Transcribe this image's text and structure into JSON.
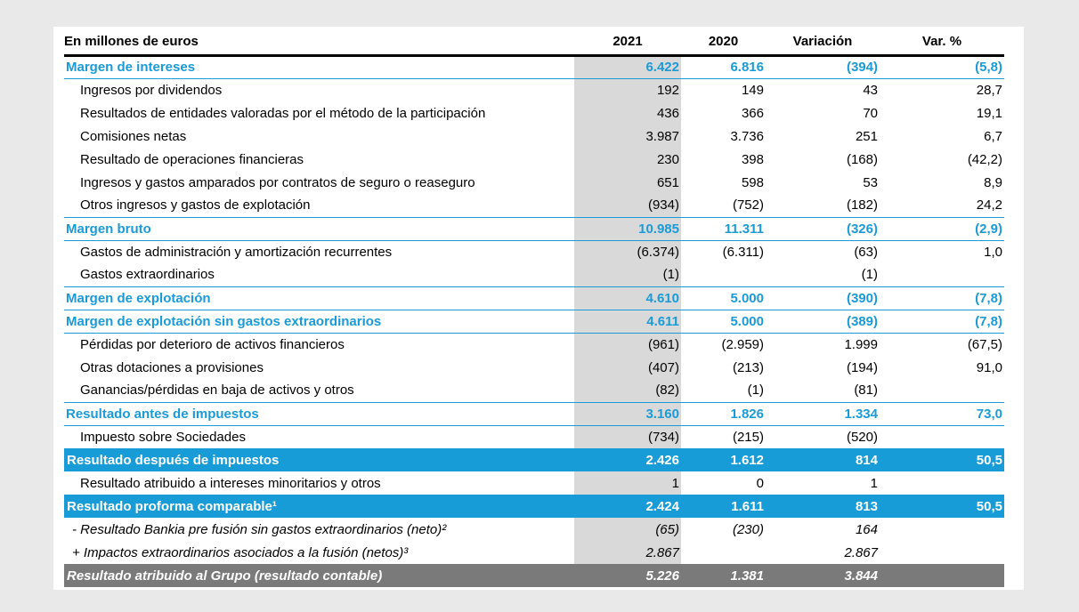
{
  "page": {
    "background_color": "#e9e9e9",
    "card_color": "#ffffff"
  },
  "colors": {
    "accent_blue_text": "#1a9bd7",
    "highlight_blue_bar": "#189cd8",
    "highlight_gray_bar": "#7a7a7a",
    "shaded_2021_column": "#d9d9d9",
    "header_rule": "#000000"
  },
  "table": {
    "title_column_header": "En millones de euros",
    "columns": [
      "2021",
      "2020",
      "Variación",
      "Var. %"
    ],
    "rows": [
      {
        "style": "summary",
        "label": "Margen de intereses",
        "values": [
          "6.422",
          "6.816",
          "(394)",
          "(5,8)"
        ]
      },
      {
        "style": "normal",
        "label": "Ingresos por dividendos",
        "values": [
          "192",
          "149",
          "43",
          "28,7"
        ]
      },
      {
        "style": "normal",
        "label": "Resultados de entidades valoradas por el método de la participación",
        "values": [
          "436",
          "366",
          "70",
          "19,1"
        ]
      },
      {
        "style": "normal",
        "label": "Comisiones netas",
        "values": [
          "3.987",
          "3.736",
          "251",
          "6,7"
        ]
      },
      {
        "style": "normal",
        "label": "Resultado de operaciones financieras",
        "values": [
          "230",
          "398",
          "(168)",
          "(42,2)"
        ]
      },
      {
        "style": "normal",
        "label": "Ingresos y gastos amparados por contratos de seguro o reaseguro",
        "values": [
          "651",
          "598",
          "53",
          "8,9"
        ]
      },
      {
        "style": "normal",
        "label": "Otros ingresos y gastos de explotación",
        "values": [
          "(934)",
          "(752)",
          "(182)",
          "24,2"
        ]
      },
      {
        "style": "summary",
        "label": "Margen bruto",
        "values": [
          "10.985",
          "11.311",
          "(326)",
          "(2,9)"
        ]
      },
      {
        "style": "normal",
        "label": "Gastos de administración y amortización recurrentes",
        "values": [
          "(6.374)",
          "(6.311)",
          "(63)",
          "1,0"
        ]
      },
      {
        "style": "normal",
        "label": "Gastos extraordinarios",
        "values": [
          "(1)",
          "",
          "(1)",
          ""
        ]
      },
      {
        "style": "summary",
        "label": "Margen de explotación",
        "values": [
          "4.610",
          "5.000",
          "(390)",
          "(7,8)"
        ]
      },
      {
        "style": "summary",
        "label": "Margen de explotación sin gastos extraordinarios",
        "values": [
          "4.611",
          "5.000",
          "(389)",
          "(7,8)"
        ]
      },
      {
        "style": "normal",
        "label": "Pérdidas por deterioro de activos financieros",
        "values": [
          "(961)",
          "(2.959)",
          "1.999",
          "(67,5)"
        ]
      },
      {
        "style": "normal",
        "label": "Otras dotaciones a provisiones",
        "values": [
          "(407)",
          "(213)",
          "(194)",
          "91,0"
        ]
      },
      {
        "style": "normal",
        "label": "Ganancias/pérdidas en baja de activos y otros",
        "values": [
          "(82)",
          "(1)",
          "(81)",
          ""
        ]
      },
      {
        "style": "summary",
        "label": "Resultado antes de impuestos",
        "values": [
          "3.160",
          "1.826",
          "1.334",
          "73,0"
        ]
      },
      {
        "style": "normal",
        "label": "Impuesto sobre Sociedades",
        "values": [
          "(734)",
          "(215)",
          "(520)",
          ""
        ]
      },
      {
        "style": "highlight-blue",
        "label": "Resultado después de impuestos",
        "values": [
          "2.426",
          "1.612",
          "814",
          "50,5"
        ]
      },
      {
        "style": "normal",
        "label": "Resultado atribuido a intereses minoritarios y otros",
        "values": [
          "1",
          "0",
          "1",
          ""
        ]
      },
      {
        "style": "highlight-blue",
        "label": "Resultado proforma comparable¹",
        "values": [
          "2.424",
          "1.611",
          "813",
          "50,5"
        ]
      },
      {
        "style": "italic",
        "label": "- Resultado Bankia pre fusión sin gastos extraordinarios (neto)²",
        "values": [
          "(65)",
          "(230)",
          "164",
          ""
        ]
      },
      {
        "style": "italic",
        "label": "+ Impactos extraordinarios asociados a la fusión (netos)³",
        "values": [
          "2.867",
          "",
          "2.867",
          ""
        ]
      },
      {
        "style": "highlight-gray",
        "label": "Resultado atribuido al Grupo (resultado contable)",
        "values": [
          "5.226",
          "1.381",
          "3.844",
          ""
        ]
      }
    ]
  }
}
